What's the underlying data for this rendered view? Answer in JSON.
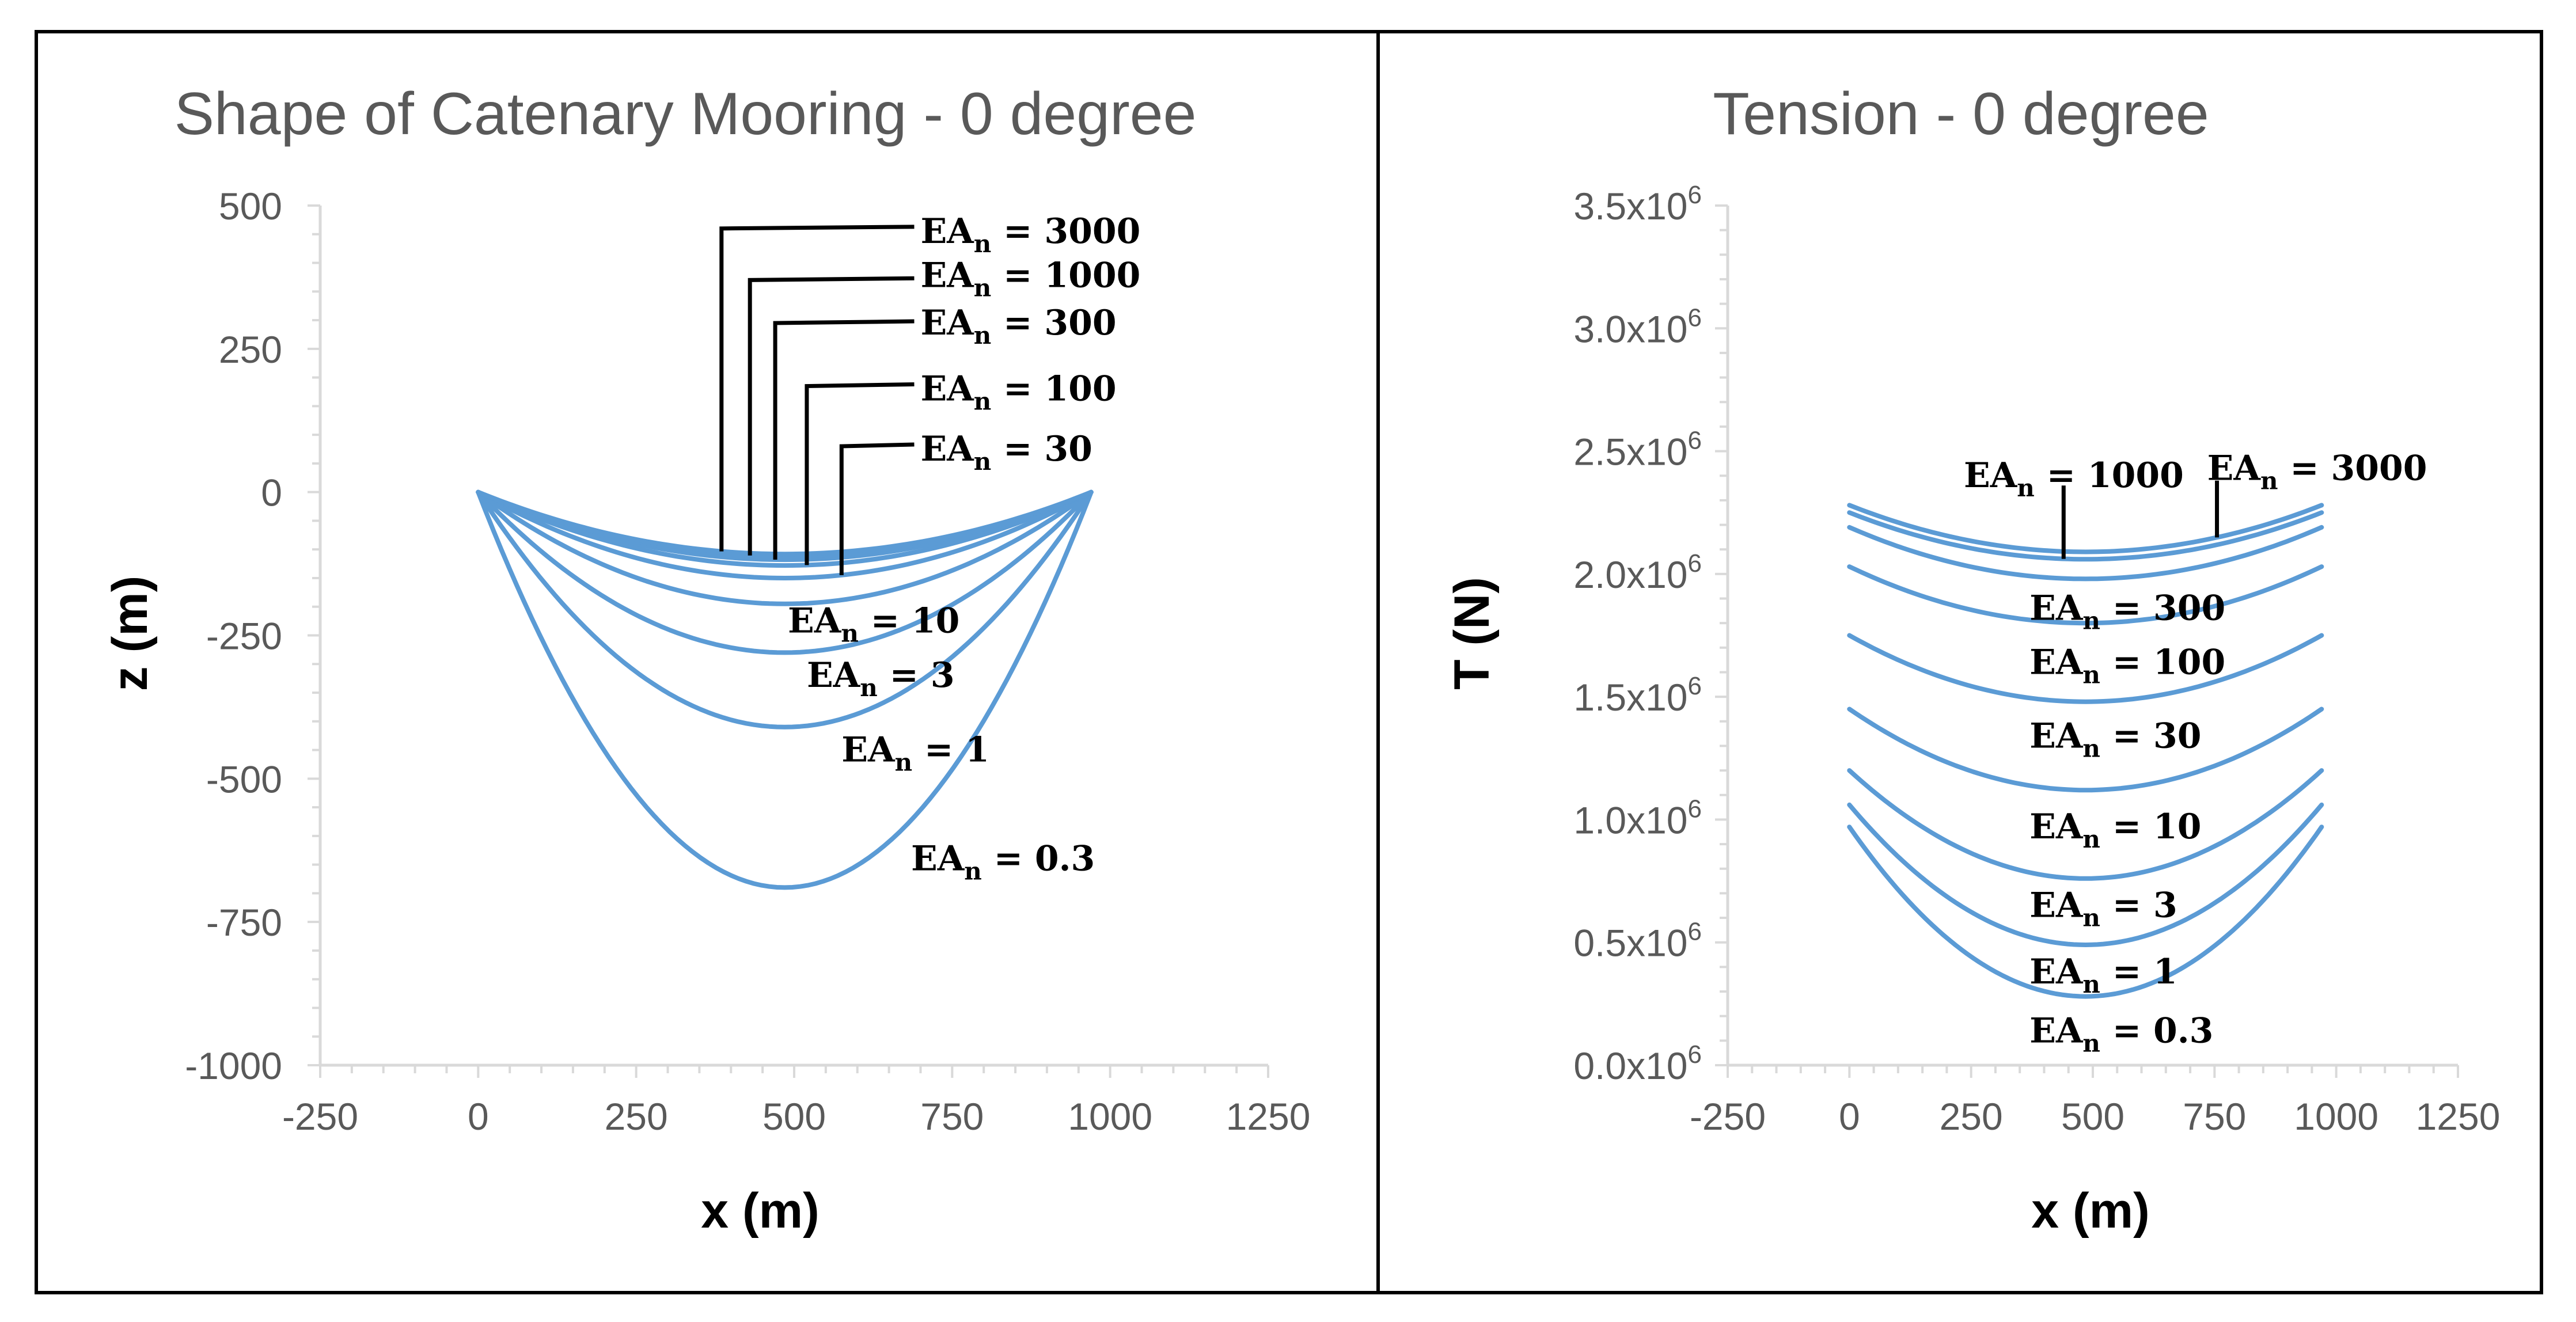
{
  "chart_data": [
    {
      "type": "line",
      "title": "Shape of Catenary Mooring - 0 degree",
      "xlabel": "x (m)",
      "ylabel": "z (m)",
      "xlim": [
        -250,
        1250
      ],
      "ylim": [
        -1000,
        500
      ],
      "xticks": [
        -250,
        0,
        250,
        500,
        750,
        1000,
        1250
      ],
      "yticks": [
        -1000,
        -750,
        -500,
        -250,
        0,
        250,
        500
      ],
      "xtick_labels": [
        "-250",
        "0",
        "250",
        "500",
        "750",
        "1000",
        "1250"
      ],
      "ytick_labels": [
        "-1000",
        "-750",
        "-500",
        "-250",
        "0",
        "250",
        "500"
      ],
      "grid": false,
      "legend": "none",
      "x_range": [
        0,
        970
      ],
      "x_min_point": 485,
      "series": [
        {
          "name": "EAn = 0.3",
          "base": "EA",
          "sub": "n",
          "rest": " = 0.3",
          "y_end": 0,
          "y_min": -690
        },
        {
          "name": "EAn = 1",
          "base": "EA",
          "sub": "n",
          "rest": " = 1",
          "y_end": 0,
          "y_min": -410
        },
        {
          "name": "EAn = 3",
          "base": "EA",
          "sub": "n",
          "rest": " = 3",
          "y_end": 0,
          "y_min": -280
        },
        {
          "name": "EAn = 10",
          "base": "EA",
          "sub": "n",
          "rest": " = 10",
          "y_end": 0,
          "y_min": -195
        },
        {
          "name": "EAn = 30",
          "base": "EA",
          "sub": "n",
          "rest": " = 30",
          "y_end": 0,
          "y_min": -150
        },
        {
          "name": "EAn = 100",
          "base": "EA",
          "sub": "n",
          "rest": " = 100",
          "y_end": 0,
          "y_min": -128
        },
        {
          "name": "EAn = 300",
          "base": "EA",
          "sub": "n",
          "rest": " = 300",
          "y_end": 0,
          "y_min": -118
        },
        {
          "name": "EAn = 1000",
          "base": "EA",
          "sub": "n",
          "rest": " = 1000",
          "y_end": 0,
          "y_min": -112
        },
        {
          "name": "EAn = 3000",
          "base": "EA",
          "sub": "n",
          "rest": " = 3000",
          "y_end": 0,
          "y_min": -108
        }
      ],
      "leaders": [
        {
          "series": "EAn = 3000",
          "x_curve": 385,
          "z_top": 460,
          "text_z": 455
        },
        {
          "series": "EAn = 1000",
          "x_curve": 430,
          "z_top": 370,
          "text_z": 378
        },
        {
          "series": "EAn = 300",
          "x_curve": 470,
          "z_top": 295,
          "text_z": 295
        },
        {
          "series": "EAn = 100",
          "x_curve": 520,
          "z_top": 185,
          "text_z": 180
        },
        {
          "series": "EAn = 30",
          "x_curve": 575,
          "z_top": 80,
          "text_z": 75
        }
      ],
      "labels": [
        {
          "series": "EAn = 10",
          "x": 490,
          "z": -225
        },
        {
          "series": "EAn = 3",
          "x": 520,
          "z": -320
        },
        {
          "series": "EAn = 1",
          "x": 575,
          "z": -450
        },
        {
          "series": "EAn = 0.3",
          "x": 685,
          "z": -640
        }
      ]
    },
    {
      "type": "line",
      "title": "Tension - 0 degree",
      "xlabel": "x (m)",
      "ylabel": "T (N)",
      "xlim": [
        -250,
        1250
      ],
      "ylim": [
        0,
        3500000
      ],
      "xticks": [
        -250,
        0,
        250,
        500,
        750,
        1000,
        1250
      ],
      "yticks": [
        0,
        500000,
        1000000,
        1500000,
        2000000,
        2500000,
        3000000,
        3500000
      ],
      "xtick_labels": [
        "-250",
        "0",
        "250",
        "500",
        "750",
        "1000",
        "1250"
      ],
      "ytick_labels": [
        {
          "base": "0.0x10",
          "exp": "6"
        },
        {
          "base": "0.5x10",
          "exp": "6"
        },
        {
          "base": "1.0x10",
          "exp": "6"
        },
        {
          "base": "1.5x10",
          "exp": "6"
        },
        {
          "base": "2.0x10",
          "exp": "6"
        },
        {
          "base": "2.5x10",
          "exp": "6"
        },
        {
          "base": "3.0x10",
          "exp": "6"
        },
        {
          "base": "3.5x10",
          "exp": "6"
        }
      ],
      "grid": false,
      "legend": "none",
      "x_range": [
        0,
        970
      ],
      "x_min_point": 485,
      "series": [
        {
          "name": "EAn = 0.3",
          "base": "EA",
          "sub": "n",
          "rest": " = 0.3",
          "y_end": 970000,
          "y_min": 280000
        },
        {
          "name": "EAn = 1",
          "base": "EA",
          "sub": "n",
          "rest": " = 1",
          "y_end": 1060000,
          "y_min": 490000
        },
        {
          "name": "EAn = 3",
          "base": "EA",
          "sub": "n",
          "rest": " = 3",
          "y_end": 1200000,
          "y_min": 760000
        },
        {
          "name": "EAn = 10",
          "base": "EA",
          "sub": "n",
          "rest": " = 10",
          "y_end": 1450000,
          "y_min": 1120000
        },
        {
          "name": "EAn = 30",
          "base": "EA",
          "sub": "n",
          "rest": " = 30",
          "y_end": 1750000,
          "y_min": 1480000
        },
        {
          "name": "EAn = 100",
          "base": "EA",
          "sub": "n",
          "rest": " = 100",
          "y_end": 2030000,
          "y_min": 1800000
        },
        {
          "name": "EAn = 300",
          "base": "EA",
          "sub": "n",
          "rest": " = 300",
          "y_end": 2190000,
          "y_min": 1980000
        },
        {
          "name": "EAn = 1000",
          "base": "EA",
          "sub": "n",
          "rest": " = 1000",
          "y_end": 2250000,
          "y_min": 2060000
        },
        {
          "name": "EAn = 3000",
          "base": "EA",
          "sub": "n",
          "rest": " = 3000",
          "y_end": 2280000,
          "y_min": 2090000
        }
      ],
      "leaders": [
        {
          "series": "EAn = 1000",
          "x_curve": 440,
          "t_top": 2360000,
          "text_x": 235,
          "text_t": 2400000
        },
        {
          "series": "EAn = 3000",
          "x_curve": 755,
          "t_top": 2380000,
          "text_x": 735,
          "text_t": 2430000
        }
      ],
      "labels": [
        {
          "series": "EAn = 300",
          "x": 370,
          "t": 1860000
        },
        {
          "series": "EAn = 100",
          "x": 370,
          "t": 1640000
        },
        {
          "series": "EAn = 30",
          "x": 370,
          "t": 1340000
        },
        {
          "series": "EAn = 10",
          "x": 370,
          "t": 970000
        },
        {
          "series": "EAn = 3",
          "x": 370,
          "t": 650000
        },
        {
          "series": "EAn = 1",
          "x": 370,
          "t": 380000
        },
        {
          "series": "EAn = 0.3",
          "x": 370,
          "t": 140000
        }
      ]
    }
  ],
  "colors": {
    "curve": "#5b9bd5",
    "axis": "#d9d9d9",
    "tick_text": "#595959",
    "title": "#595959"
  }
}
